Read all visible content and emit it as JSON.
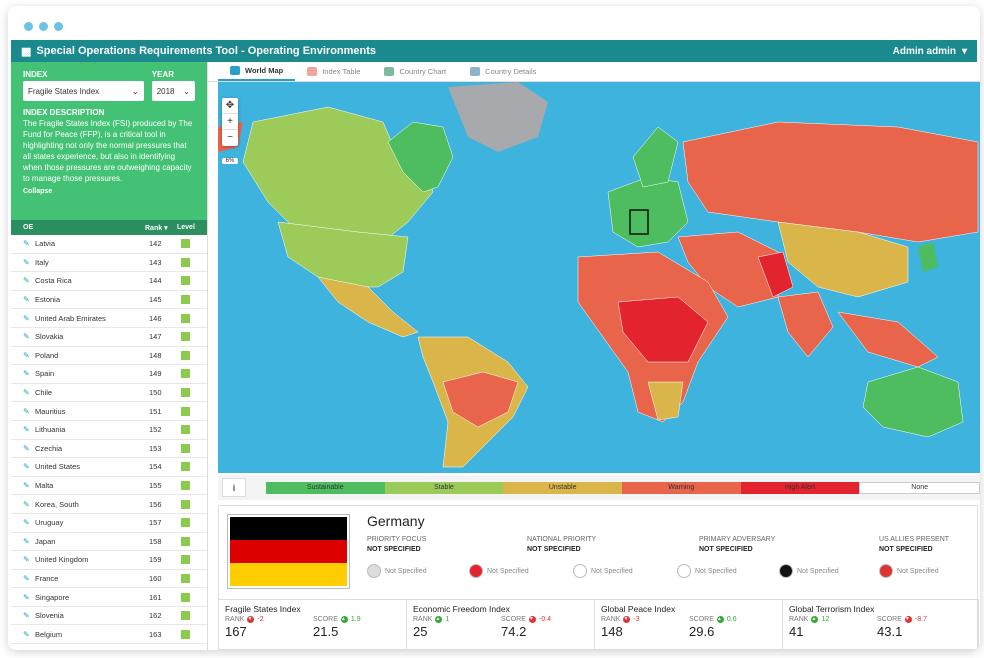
{
  "header": {
    "title": "Special Operations Requirements Tool - Operating Environments",
    "user": "Admin admin"
  },
  "filters": {
    "index_label": "INDEX",
    "index_value": "Fragile States Index",
    "year_label": "YEAR",
    "year_value": "2018",
    "desc_title": "INDEX DESCRIPTION",
    "desc_text": "The Fragile States Index (FSI) produced by The Fund for Peace (FFP), is a critical tool in highlighting not only the normal pressures that all states experience, but also in identifying when those pressures are outweighing capacity to manage those pressures.",
    "collapse": "Collapse"
  },
  "list": {
    "col_oe": "OE",
    "col_rank": "Rank",
    "col_level": "Level",
    "rows": [
      {
        "name": "Latvia",
        "rank": "142"
      },
      {
        "name": "Italy",
        "rank": "143"
      },
      {
        "name": "Costa Rica",
        "rank": "144"
      },
      {
        "name": "Estonia",
        "rank": "145"
      },
      {
        "name": "United Arab Emirates",
        "rank": "146"
      },
      {
        "name": "Slovakia",
        "rank": "147"
      },
      {
        "name": "Poland",
        "rank": "148"
      },
      {
        "name": "Spain",
        "rank": "149"
      },
      {
        "name": "Chile",
        "rank": "150"
      },
      {
        "name": "Mauritius",
        "rank": "151"
      },
      {
        "name": "Lithuania",
        "rank": "152"
      },
      {
        "name": "Czechia",
        "rank": "153"
      },
      {
        "name": "United States",
        "rank": "154"
      },
      {
        "name": "Malta",
        "rank": "155"
      },
      {
        "name": "Korea, South",
        "rank": "156"
      },
      {
        "name": "Uruguay",
        "rank": "157"
      },
      {
        "name": "Japan",
        "rank": "158"
      },
      {
        "name": "United Kingdom",
        "rank": "159"
      },
      {
        "name": "France",
        "rank": "160"
      },
      {
        "name": "Singapore",
        "rank": "161"
      },
      {
        "name": "Slovenia",
        "rank": "162"
      },
      {
        "name": "Belgium",
        "rank": "163"
      }
    ]
  },
  "tabs": [
    "World Map",
    "Index Table",
    "Country Chart",
    "Country Details"
  ],
  "map": {
    "zoom_pct": "6%"
  },
  "legend": [
    {
      "label": "Sustainable",
      "color": "#4dbd5f"
    },
    {
      "label": "Stable",
      "color": "#9ccb5a"
    },
    {
      "label": "Unstable",
      "color": "#d9b54a"
    },
    {
      "label": "Warning",
      "color": "#e8644b"
    },
    {
      "label": "High Alert",
      "color": "#e3232e"
    },
    {
      "label": "None",
      "color": "#ffffff"
    }
  ],
  "country": {
    "name": "Germany",
    "cols": [
      {
        "label": "PRIORITY FOCUS",
        "value": "NOT SPECIFIED"
      },
      {
        "label": "NATIONAL PRIORITY",
        "value": "NOT SPECIFIED"
      },
      {
        "label": "PRIMARY ADVERSARY",
        "value": "NOT SPECIFIED"
      },
      {
        "label": "US ALLIES PRESENT",
        "value": "NOT SPECIFIED"
      }
    ],
    "ns": "Not Specified",
    "indices": [
      {
        "title": "Fragile States Index",
        "rank": "167",
        "rank_delta": "-2",
        "score": "21.5",
        "score_delta": "1.9"
      },
      {
        "title": "Economic Freedom Index",
        "rank": "25",
        "rank_delta": "1",
        "score": "74.2",
        "score_delta": "-0.4"
      },
      {
        "title": "Global Peace Index",
        "rank": "148",
        "rank_delta": "-3",
        "score": "29.6",
        "score_delta": "0.6"
      },
      {
        "title": "Global Terrorism Index",
        "rank": "41",
        "rank_delta": "12",
        "score": "43.1",
        "score_delta": "-8.7"
      }
    ],
    "rank_label": "RANK",
    "score_label": "SCORE"
  }
}
